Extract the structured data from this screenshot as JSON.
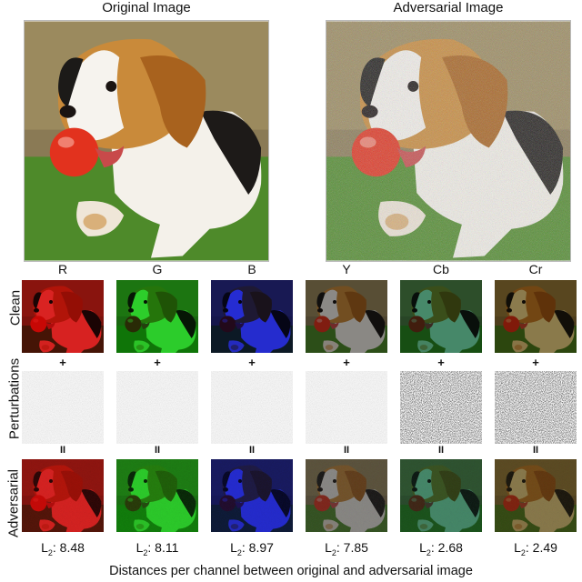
{
  "titles": {
    "original": "Original Image",
    "adversarial": "Adversarial Image"
  },
  "row_labels": {
    "clean": "Clean",
    "perturbations": "Perturbations",
    "adversarial": "Adversarial"
  },
  "channels": [
    {
      "name": "R",
      "tint": "#e01818",
      "l2_prefix": "L",
      "l2_sub": "2",
      "l2_value": ": 8.48"
    },
    {
      "name": "G",
      "tint": "#22d622",
      "l2_prefix": "L",
      "l2_sub": "2",
      "l2_value": ": 8.11"
    },
    {
      "name": "B",
      "tint": "#1a22e0",
      "l2_prefix": "L",
      "l2_sub": "2",
      "l2_value": ": 8.97"
    },
    {
      "name": "Y",
      "tint": "#8a8a8a",
      "l2_prefix": "L",
      "l2_sub": "2",
      "l2_value": ": 7.85"
    },
    {
      "name": "Cb",
      "tint": "#3f8a6a",
      "l2_prefix": "L",
      "l2_sub": "2",
      "l2_value": ": 2.68"
    },
    {
      "name": "Cr",
      "tint": "#8a7a48",
      "l2_prefix": "L",
      "l2_sub": "2",
      "l2_value": ": 2.49"
    }
  ],
  "operators": {
    "plus": "+",
    "equals": "II"
  },
  "caption": "Distances per channel between original and adversarial image"
}
